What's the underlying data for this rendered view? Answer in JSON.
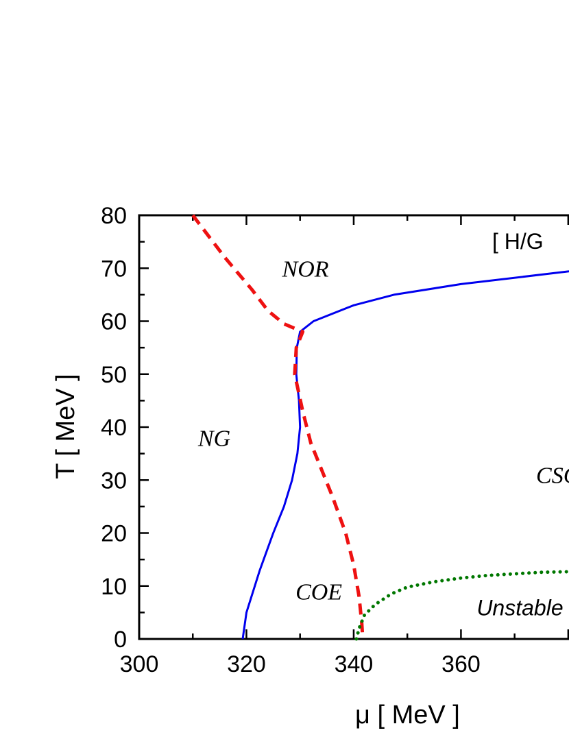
{
  "chart_data": {
    "type": "line",
    "xlabel": "μ  [ MeV ]",
    "ylabel": "T [ MeV ]",
    "xlim": [
      300,
      385
    ],
    "ylim": [
      0,
      80
    ],
    "x_ticks": [
      "300",
      "320",
      "340",
      "360"
    ],
    "y_ticks": [
      "0",
      "10",
      "20",
      "30",
      "40",
      "50",
      "60",
      "70",
      "80"
    ],
    "grid": false,
    "corner_label": "[ H/G",
    "region_labels": [
      {
        "text": "NOR",
        "x": 331,
        "y": 70,
        "style": "serif"
      },
      {
        "text": "NG",
        "x": 314,
        "y": 38,
        "style": "serif"
      },
      {
        "text": "COE",
        "x": 333.5,
        "y": 9,
        "style": "serif"
      },
      {
        "text": "CSC",
        "x": 378,
        "y": 31,
        "style": "serif"
      },
      {
        "text": "Unstable",
        "x": 371,
        "y": 6,
        "style": "sans"
      }
    ],
    "series": [
      {
        "color": "#0000ee",
        "dash": "solid",
        "points": [
          [
            319.3,
            0
          ],
          [
            320,
            5
          ],
          [
            322.5,
            13
          ],
          [
            325,
            20
          ],
          [
            327,
            25
          ],
          [
            328.5,
            30
          ],
          [
            329.5,
            35
          ],
          [
            330,
            40
          ],
          [
            329.8,
            45
          ],
          [
            329.3,
            50
          ],
          [
            329.4,
            55
          ],
          [
            330,
            58
          ],
          [
            332.5,
            60
          ],
          [
            340,
            63
          ],
          [
            347.5,
            65
          ],
          [
            360,
            67
          ],
          [
            385,
            70
          ]
        ]
      },
      {
        "color": "#ee1111",
        "dash": "dashed",
        "points": [
          [
            310,
            80
          ],
          [
            316,
            72
          ],
          [
            321,
            66
          ],
          [
            324,
            62
          ],
          [
            327,
            59.5
          ],
          [
            330.5,
            58
          ],
          [
            329.3,
            55
          ],
          [
            329,
            50
          ],
          [
            330.5,
            43
          ],
          [
            332,
            37
          ],
          [
            334,
            32
          ],
          [
            336,
            27
          ],
          [
            338.5,
            20
          ],
          [
            340,
            14
          ],
          [
            341,
            8
          ],
          [
            341.5,
            3
          ],
          [
            341.7,
            0
          ]
        ]
      },
      {
        "color": "#007700",
        "dash": "dotted",
        "points": [
          [
            340.5,
            0
          ],
          [
            341,
            2
          ],
          [
            342,
            4.5
          ],
          [
            344,
            6.5
          ],
          [
            347,
            8.5
          ],
          [
            350,
            9.8
          ],
          [
            355,
            10.8
          ],
          [
            360,
            11.5
          ],
          [
            365,
            12
          ],
          [
            370,
            12.3
          ],
          [
            375,
            12.6
          ],
          [
            385,
            12.8
          ]
        ]
      }
    ]
  }
}
